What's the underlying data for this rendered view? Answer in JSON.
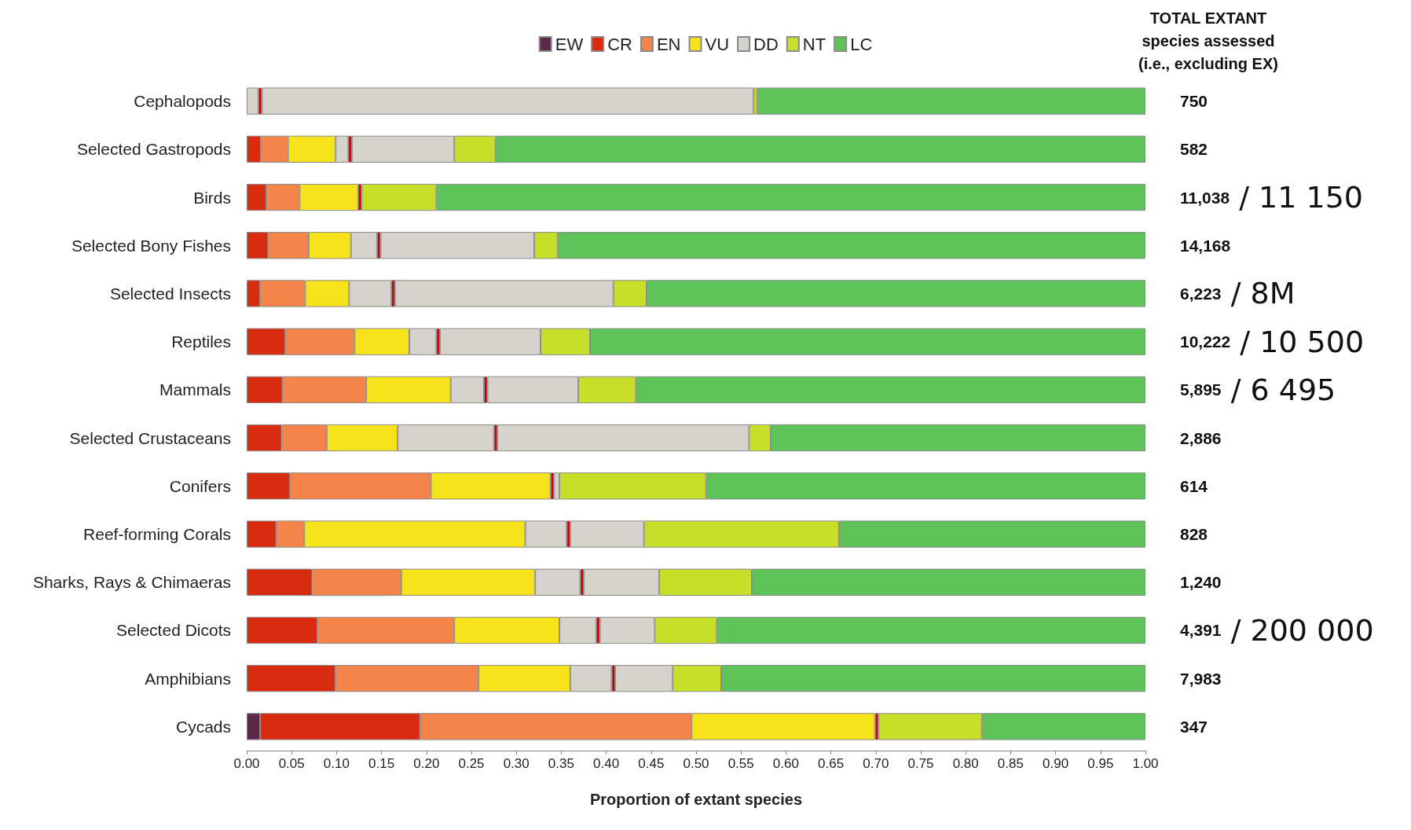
{
  "chart_data": {
    "type": "bar",
    "orientation": "horizontal",
    "stacked": true,
    "categories": [
      "Cephalopods",
      "Selected Gastropods",
      "Birds",
      "Selected Bony Fishes",
      "Selected Insects",
      "Reptiles",
      "Mammals",
      "Selected Crustaceans",
      "Conifers",
      "Reef-forming Corals",
      "Sharks, Rays & Chimaeras",
      "Selected Dicots",
      "Amphibians",
      "Cycads"
    ],
    "series": [
      {
        "name": "EW",
        "color": "#5b2a4b",
        "values": [
          0,
          0,
          0,
          0,
          0,
          0,
          0,
          0,
          0,
          0,
          0,
          0,
          0,
          0.015
        ]
      },
      {
        "name": "CR",
        "color": "#d92b10",
        "values": [
          0,
          0.016,
          0.022,
          0.024,
          0.015,
          0.043,
          0.04,
          0.039,
          0.048,
          0.033,
          0.073,
          0.079,
          0.099,
          0.178
        ]
      },
      {
        "name": "EN",
        "color": "#f5844a",
        "values": [
          0,
          0.03,
          0.037,
          0.045,
          0.05,
          0.077,
          0.093,
          0.05,
          0.157,
          0.031,
          0.099,
          0.152,
          0.159,
          0.302
        ]
      },
      {
        "name": "VU",
        "color": "#f7e31b",
        "values": [
          0,
          0.053,
          0.065,
          0.047,
          0.049,
          0.061,
          0.094,
          0.079,
          0.133,
          0.246,
          0.149,
          0.117,
          0.102,
          0.204
        ]
      },
      {
        "name": "DD",
        "color": "#d6d3cc",
        "values": [
          0.013,
          0.014,
          0,
          0.029,
          0.047,
          0.03,
          0.037,
          0.107,
          0,
          0.046,
          0.05,
          0.041,
          0.046,
          0
        ]
      },
      {
        "color": "#cc0000",
        "values": [
          0.004,
          0.004,
          0.004,
          0.004,
          0.004,
          0.004,
          0.004,
          0.004,
          0.004,
          0.004,
          0.004,
          0.004,
          0.004,
          0.004
        ]
      },
      {
        "color": "#d6d3cc",
        "values": [
          0.547,
          0.114,
          0,
          0.171,
          0.243,
          0.112,
          0.101,
          0.28,
          0.006,
          0.082,
          0.084,
          0.061,
          0.064,
          0
        ]
      },
      {
        "name": "NT",
        "color": "#c8df2a",
        "values": [
          0.004,
          0.046,
          0.083,
          0.026,
          0.037,
          0.055,
          0.064,
          0.024,
          0.163,
          0.217,
          0.103,
          0.069,
          0.054,
          0.115
        ]
      },
      {
        "name": "LC",
        "color": "#5ec45a",
        "values": [
          0.432,
          0.723,
          0.789,
          0.654,
          0.555,
          0.618,
          0.567,
          0.417,
          0.489,
          0.341,
          0.438,
          0.477,
          0.472,
          0.182
        ]
      }
    ],
    "xlim": [
      0,
      1
    ],
    "xticks": [
      {
        "value": 0,
        "label": "0.00"
      },
      {
        "value": 0.05,
        "label": "0.05"
      },
      {
        "value": 0.1,
        "label": "0.10"
      },
      {
        "value": 0.15,
        "label": "0.15"
      },
      {
        "value": 0.2,
        "label": "0.20"
      },
      {
        "value": 0.25,
        "label": "0.25"
      },
      {
        "value": 0.3,
        "label": "0.30"
      },
      {
        "value": 0.35,
        "label": "0.35"
      },
      {
        "value": 0.4,
        "label": "0.40"
      },
      {
        "value": 0.45,
        "label": "0.45"
      },
      {
        "value": 0.5,
        "label": "0.50"
      },
      {
        "value": 0.55,
        "label": "0.55"
      },
      {
        "value": 0.6,
        "label": "0.60"
      },
      {
        "value": 0.65,
        "label": "0.65"
      },
      {
        "value": 0.7,
        "label": "0.70"
      },
      {
        "value": 0.75,
        "label": "0.75"
      },
      {
        "value": 0.8,
        "label": "0.80"
      },
      {
        "value": 0.85,
        "label": "0.85"
      },
      {
        "value": 0.9,
        "label": "0.90"
      },
      {
        "value": 0.95,
        "label": "0.95"
      },
      {
        "value": 1,
        "label": "1.00"
      }
    ],
    "xlabel": "Proportion of extant species",
    "legend": "top",
    "grid": false,
    "annotations": [
      "TOTAL EXTANT\nspecies assessed\n(i.e., excluding EX)",
      "750",
      "582",
      "11,038 / 11 150",
      "14,168",
      "6,223 / 8M",
      "10,222 / 10 500",
      "5,895 / 6 495",
      "2,886",
      "614",
      "828",
      "1,240",
      "4,391 / 200 000",
      "7,983",
      "347"
    ]
  }
}
